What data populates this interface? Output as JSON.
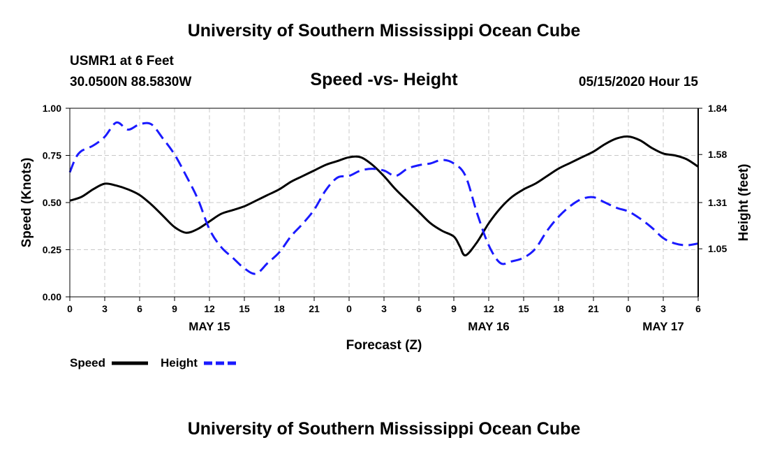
{
  "header": {
    "title": "University of Southern Mississippi Ocean Cube",
    "station": "USMR1 at 6 Feet",
    "coords": "30.0500N 88.5830W",
    "datetime": "05/15/2020 Hour 15"
  },
  "footer": {
    "title": "University of Southern Mississippi Ocean Cube"
  },
  "colors": {
    "speed": "#000000",
    "height": "#1a1aff",
    "grid": "#c8c8c8"
  },
  "chart_data": {
    "type": "line",
    "title": "Speed -vs- Height",
    "xlabel": "Forecast (Z)",
    "ylabel": "Speed (Knots)",
    "y2label": "Height (feet)",
    "xlim": [
      0,
      54
    ],
    "ylim": [
      0,
      1
    ],
    "y2lim": [
      0.78,
      1.84
    ],
    "x_ticks": [
      0,
      3,
      6,
      9,
      12,
      15,
      18,
      21,
      24,
      27,
      30,
      33,
      36,
      39,
      42,
      45,
      48,
      51,
      54
    ],
    "x_tick_labels": [
      "0",
      "3",
      "6",
      "9",
      "12",
      "15",
      "18",
      "21",
      "0",
      "3",
      "6",
      "9",
      "12",
      "15",
      "18",
      "21",
      "0",
      "3",
      "6"
    ],
    "y_ticks": [
      0,
      0.25,
      0.5,
      0.75,
      1.0
    ],
    "y_tick_labels": [
      "0.00",
      "0.25",
      "0.50",
      "0.75",
      "1.00"
    ],
    "y2_ticks": [
      1.05,
      1.31,
      1.58,
      1.84
    ],
    "y2_tick_labels": [
      "1.05",
      "1.31",
      "1.58",
      "1.84"
    ],
    "date_labels": [
      {
        "label": "MAY 15",
        "x": 12
      },
      {
        "label": "MAY 16",
        "x": 36
      },
      {
        "label": "MAY 17",
        "x": 51
      }
    ],
    "grid": true,
    "legend_position": "bottom-left",
    "series": [
      {
        "name": "Speed",
        "axis": "left",
        "style": "solid",
        "x": [
          0,
          1,
          2,
          3,
          4,
          5,
          6,
          7,
          8,
          9,
          10,
          11,
          12,
          13,
          14,
          15,
          16,
          17,
          18,
          19,
          20,
          21,
          22,
          23,
          24,
          25,
          26,
          27,
          28,
          29,
          30,
          31,
          32,
          33,
          33.5,
          34,
          35,
          36,
          37,
          38,
          39,
          40,
          41,
          42,
          43,
          44,
          45,
          46,
          47,
          48,
          49,
          50,
          51,
          52,
          53,
          54
        ],
        "values": [
          0.51,
          0.53,
          0.57,
          0.6,
          0.59,
          0.57,
          0.54,
          0.49,
          0.43,
          0.37,
          0.34,
          0.36,
          0.4,
          0.44,
          0.46,
          0.48,
          0.51,
          0.54,
          0.57,
          0.61,
          0.64,
          0.67,
          0.7,
          0.72,
          0.74,
          0.74,
          0.7,
          0.64,
          0.57,
          0.51,
          0.45,
          0.39,
          0.35,
          0.32,
          0.27,
          0.22,
          0.29,
          0.39,
          0.47,
          0.53,
          0.57,
          0.6,
          0.64,
          0.68,
          0.71,
          0.74,
          0.77,
          0.81,
          0.84,
          0.85,
          0.83,
          0.79,
          0.76,
          0.75,
          0.73,
          0.69
        ]
      },
      {
        "name": "Height",
        "axis": "right",
        "style": "dashed",
        "x": [
          0,
          0.5,
          1,
          2,
          3,
          4,
          5,
          6,
          7,
          8,
          9,
          10,
          11,
          12,
          13,
          14,
          15,
          16,
          17,
          18,
          19,
          20,
          21,
          22,
          23,
          24,
          25,
          26,
          27,
          28,
          29,
          30,
          31,
          32,
          33,
          34,
          35,
          36,
          37,
          38,
          39,
          40,
          41,
          42,
          43,
          44,
          45,
          46,
          47,
          48,
          49,
          50,
          51,
          52,
          53,
          54
        ],
        "values": [
          1.48,
          1.56,
          1.6,
          1.63,
          1.68,
          1.76,
          1.72,
          1.75,
          1.75,
          1.67,
          1.58,
          1.46,
          1.33,
          1.16,
          1.06,
          1.0,
          0.94,
          0.91,
          0.97,
          1.03,
          1.12,
          1.19,
          1.27,
          1.38,
          1.45,
          1.46,
          1.49,
          1.5,
          1.49,
          1.46,
          1.5,
          1.52,
          1.53,
          1.55,
          1.53,
          1.46,
          1.25,
          1.07,
          0.97,
          0.98,
          1.0,
          1.05,
          1.15,
          1.23,
          1.29,
          1.33,
          1.34,
          1.31,
          1.28,
          1.26,
          1.22,
          1.17,
          1.11,
          1.08,
          1.07,
          1.08
        ]
      }
    ]
  }
}
